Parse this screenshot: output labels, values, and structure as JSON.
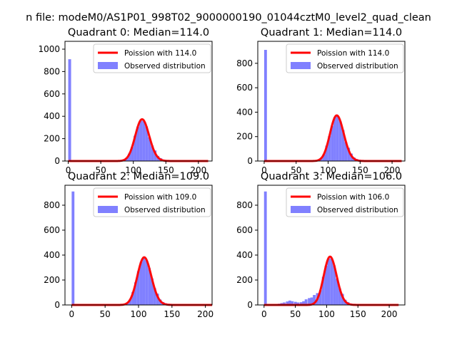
{
  "figure_title": "n file: modeM0/AS1P01_998T02_9000000190_01044cztM0_level2_quad_clean",
  "colors": {
    "hist": "#8080ff",
    "poisson": "#ff0000",
    "axis": "#000000",
    "legend_frame": "#cccccc"
  },
  "chart_data": [
    {
      "type": "bar",
      "title": "Quadrant 0: Median=114.0",
      "xlim": [
        -5,
        221
      ],
      "ylim": [
        0,
        1070
      ],
      "xticks": [
        0,
        50,
        100,
        150,
        200
      ],
      "yticks": [
        0,
        200,
        400,
        600,
        800,
        1000
      ],
      "legend_position": "top-right",
      "legend": [
        "Poission with 114.0",
        "Observed distribution"
      ],
      "lambda": 114,
      "outlier": {
        "x": 0,
        "value": 910
      },
      "bin_width": 4.4,
      "bin_start": 0,
      "extra_bins": []
    },
    {
      "type": "bar",
      "title": "Quadrant 1: Median=114.0",
      "xlim": [
        -10,
        220
      ],
      "ylim": [
        0,
        980
      ],
      "xticks": [
        0,
        50,
        100,
        150,
        200
      ],
      "yticks": [
        0,
        200,
        400,
        600,
        800
      ],
      "legend_position": "top-right",
      "legend": [
        "Poission with 114.0",
        "Observed distribution"
      ],
      "lambda": 114,
      "outlier": {
        "x": 0,
        "value": 910
      },
      "bin_width": 4.3,
      "bin_start": 0,
      "extra_bins": []
    },
    {
      "type": "bar",
      "title": "Quadrant 2: Median=109.0",
      "xlim": [
        -10,
        210
      ],
      "ylim": [
        0,
        960
      ],
      "xticks": [
        0,
        50,
        100,
        150,
        200
      ],
      "yticks": [
        0,
        200,
        400,
        600,
        800
      ],
      "legend_position": "top-right",
      "legend": [
        "Poission with 109.0",
        "Observed distribution"
      ],
      "lambda": 109,
      "outlier": {
        "x": 0,
        "value": 910
      },
      "bin_width": 4.1,
      "bin_start": 0,
      "extra_bins": []
    },
    {
      "type": "bar",
      "title": "Quadrant 3: Median=106.0",
      "xlim": [
        -10,
        225
      ],
      "ylim": [
        0,
        960
      ],
      "xticks": [
        0,
        50,
        100,
        150,
        200
      ],
      "yticks": [
        0,
        200,
        400,
        600,
        800
      ],
      "legend_position": "top-right",
      "legend": [
        "Poission with 106.0",
        "Observed distribution"
      ],
      "lambda": 106,
      "outlier": {
        "x": 0,
        "value": 910
      },
      "bin_width": 4.4,
      "bin_start": 0,
      "extra_bins": [
        [
          22,
          10
        ],
        [
          26,
          15
        ],
        [
          30,
          20
        ],
        [
          35,
          28
        ],
        [
          39,
          35
        ],
        [
          43,
          30
        ],
        [
          48,
          25
        ],
        [
          52,
          20
        ],
        [
          57,
          22
        ],
        [
          61,
          30
        ],
        [
          65,
          45
        ],
        [
          70,
          55
        ],
        [
          74,
          60
        ],
        [
          78,
          80
        ],
        [
          83,
          95
        ]
      ]
    }
  ]
}
